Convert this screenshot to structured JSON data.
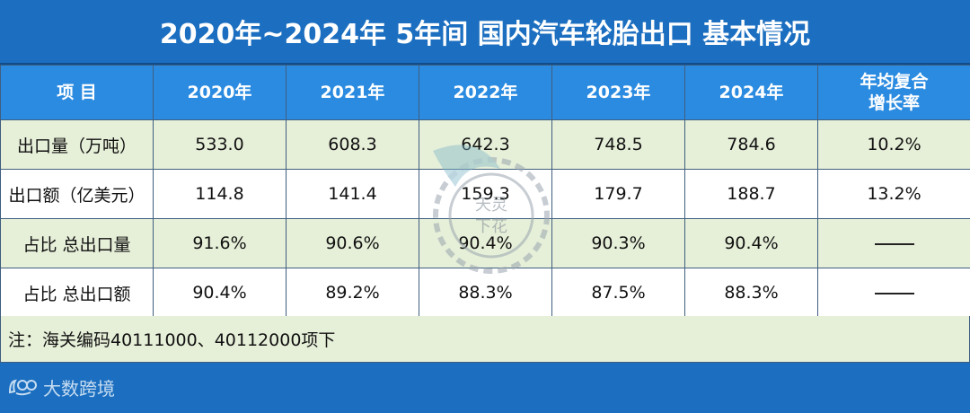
{
  "title": "2020年~2024年 5年间 国内汽车轮胎出口 基本情况",
  "header": {
    "item": "项  目",
    "years": [
      "2020年",
      "2021年",
      "2022年",
      "2023年",
      "2024年"
    ],
    "cagr_line1": "年均复合",
    "cagr_line2": "增长率"
  },
  "rows": [
    {
      "label": "出口量（万吨）",
      "values": [
        "533.0",
        "608.3",
        "642.3",
        "748.5",
        "784.6"
      ],
      "cagr": "10.2%"
    },
    {
      "label": "出口额（亿美元）",
      "values": [
        "114.8",
        "141.4",
        "159.3",
        "179.7",
        "188.7"
      ],
      "cagr": "13.2%"
    },
    {
      "label": "占比 总出口量",
      "values": [
        "91.6%",
        "90.6%",
        "90.4%",
        "90.3%",
        "90.4%"
      ],
      "cagr": ""
    },
    {
      "label": "占比 总出口额",
      "values": [
        "90.4%",
        "89.2%",
        "88.3%",
        "87.5%",
        "88.3%"
      ],
      "cagr": ""
    }
  ],
  "note": "注：海关编码40111000、40112000项下",
  "brand": {
    "name": "大数跨境",
    "icon": "brand-logo-icon"
  },
  "watermark": {
    "text": "天灵下花",
    "icon": "tire-watermark-icon"
  },
  "colors": {
    "title_bg": "#1c6fc0",
    "header_bg": "#2b8be0",
    "stripe_bg": "#e6efd8"
  }
}
